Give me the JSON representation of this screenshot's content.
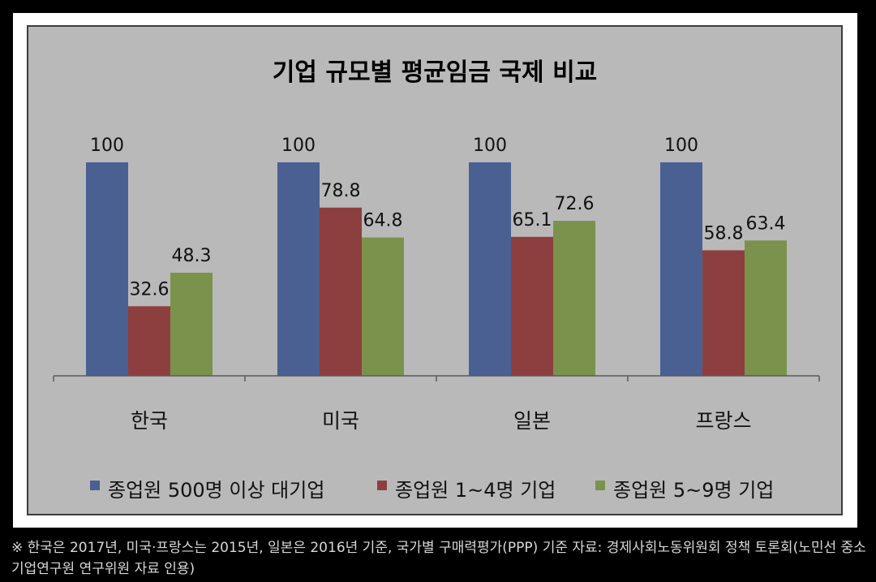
{
  "chart_data": {
    "type": "bar",
    "title": "기업 규모별 평균임금 국제 비교",
    "categories": [
      "한국",
      "미국",
      "일본",
      "프랑스"
    ],
    "series": [
      {
        "name": "종업원 500명 이상 대기업",
        "values": [
          100,
          100,
          100,
          100
        ],
        "labels": [
          "100",
          "100",
          "100",
          "100"
        ],
        "color": "#4a6092"
      },
      {
        "name": "종업원 1~4명 기업",
        "values": [
          32.6,
          78.8,
          65.1,
          58.8
        ],
        "labels": [
          "32.6",
          "78.8",
          "65.1",
          "58.8"
        ],
        "color": "#8d3f3f"
      },
      {
        "name": "종업원 5~9명 기업",
        "values": [
          48.3,
          64.8,
          72.6,
          63.4
        ],
        "labels": [
          "48.3",
          "64.8",
          "72.6",
          "63.4"
        ],
        "color": "#7b924c"
      }
    ],
    "ylim": [
      0,
      100
    ],
    "grid": false,
    "legend": "bottom",
    "plot_background": "#b9b9b9",
    "outer_border": "#3d3d3d"
  },
  "footnote": "※ 한국은 2017년, 미국·프랑스는 2015년, 일본은 2016년 기준, 국가별 구매력평가(PPP) 기준 자료: 경제사회노동위원회 정책 토론회(노민선 중소기업연구원 연구위원 자료 인용)"
}
